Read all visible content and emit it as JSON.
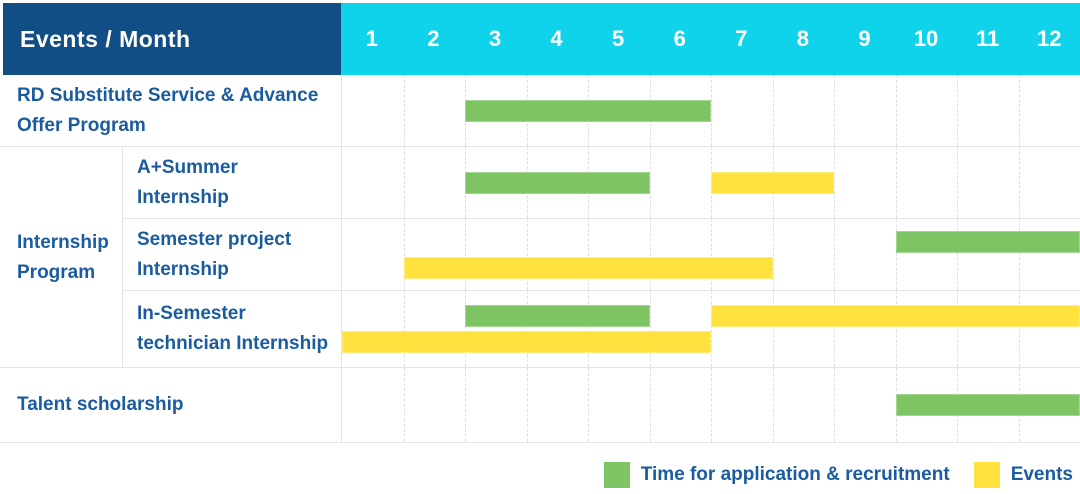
{
  "table": {
    "corner_label": "Events / Month",
    "months": [
      "1",
      "2",
      "3",
      "4",
      "5",
      "6",
      "7",
      "8",
      "9",
      "10",
      "11",
      "12"
    ]
  },
  "chart_data": {
    "type": "bar",
    "subtype": "gantt-schedule",
    "title": "Events / Month",
    "xlabel": "Month",
    "x_ticks": [
      1,
      2,
      3,
      4,
      5,
      6,
      7,
      8,
      9,
      10,
      11,
      12
    ],
    "xlim": [
      1,
      12
    ],
    "grid": "vertical-dashed",
    "legend_position": "bottom-right",
    "series_legend": [
      {
        "name": "Time for application & recruitment",
        "color": "#7DC463"
      },
      {
        "name": "Events",
        "color": "#FFE23D"
      }
    ],
    "rows": [
      {
        "group": "",
        "label": "RD Substitute Service & Advance Offer Program",
        "lanes": 1,
        "bars": [
          {
            "series": 0,
            "start_month": 3,
            "end_month": 6,
            "lane": 0
          }
        ]
      },
      {
        "group": "Internship Program",
        "label": "A+Summer Internship",
        "lanes": 1,
        "bars": [
          {
            "series": 0,
            "start_month": 3,
            "end_month": 5,
            "lane": 0
          },
          {
            "series": 1,
            "start_month": 7,
            "end_month": 8,
            "lane": 0
          }
        ]
      },
      {
        "group": "Internship Program",
        "label": "Semester project Internship",
        "lanes": 2,
        "bars": [
          {
            "series": 0,
            "start_month": 10,
            "end_month": 12,
            "lane": 0
          },
          {
            "series": 1,
            "start_month": 2,
            "end_month": 7,
            "lane": 1
          }
        ]
      },
      {
        "group": "Internship Program",
        "label": "In-Semester technician Internship",
        "lanes": 2,
        "bars": [
          {
            "series": 0,
            "start_month": 3,
            "end_month": 5,
            "lane": 0
          },
          {
            "series": 1,
            "start_month": 7,
            "end_month": 12,
            "lane": 0
          },
          {
            "series": 1,
            "start_month": 1,
            "end_month": 6,
            "lane": 1
          }
        ]
      },
      {
        "group": "",
        "label": "Talent scholarship",
        "lanes": 1,
        "bars": [
          {
            "series": 0,
            "start_month": 10,
            "end_month": 12,
            "lane": 0
          }
        ]
      }
    ],
    "group_cells": [
      {
        "label": "Internship Program",
        "row_span": [
          1,
          3
        ]
      }
    ]
  },
  "legend": {
    "items": [
      {
        "label": "Time for application & recruitment",
        "color": "#7DC463"
      },
      {
        "label": "Events",
        "color": "#FFE23D"
      }
    ]
  },
  "colors": {
    "header_bg": "#114E86",
    "month_header_bg": "#0FD3EA",
    "header_text": "#FFFFFF",
    "label_text": "#1A5C9F",
    "bar_green": "#7DC463",
    "bar_yellow": "#FFE23D",
    "gridline": "#DEDEE4",
    "row_border": "#E3E3E7"
  }
}
